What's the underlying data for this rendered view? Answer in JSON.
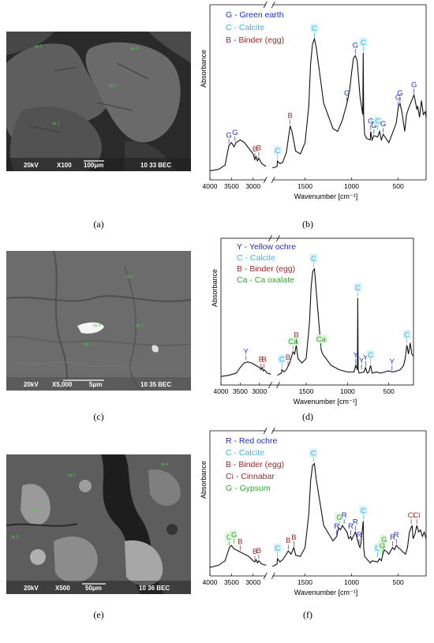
{
  "figure": {
    "panels": [
      {
        "caption": "(a)",
        "sem": {
          "kv": "20kV",
          "mag": "X100",
          "scale": "100μm",
          "info": "10 33 BEC",
          "spots": [
            "sp 2",
            "sp 4",
            "sp 2",
            "sp 1"
          ]
        }
      },
      {
        "caption": "(b)"
      },
      {
        "caption": "(c)",
        "sem": {
          "kv": "20kV",
          "mag": "X5,000",
          "scale": "5μm",
          "info": "10 35 BEC",
          "spots": [
            "sp 1",
            "sp 2",
            "sp 3",
            "sp 4"
          ]
        }
      },
      {
        "caption": "(d)"
      },
      {
        "caption": "(e)",
        "sem": {
          "kv": "20kV",
          "mag": "X500",
          "scale": "50μm",
          "info": "10 36 BEC",
          "spots": [
            "sp 2",
            "sp 4",
            "sp 1",
            "sp 3"
          ]
        }
      },
      {
        "caption": "(f)"
      }
    ]
  },
  "chart_data": [
    {
      "type": "line",
      "panel": "(b)",
      "xlabel": "Wavenumber [cm⁻¹]",
      "ylabel": "Absorbance",
      "x_reversed": true,
      "x_break": [
        2700,
        1850
      ],
      "xticks": [
        4000,
        3500,
        3000,
        1500,
        1000,
        500
      ],
      "grid": false,
      "legend_position": "top-left",
      "legend": [
        {
          "code": "G",
          "label": "Green earth",
          "color": "#1f2fbf"
        },
        {
          "code": "C",
          "label": "Calcite",
          "color": "#35b7e6"
        },
        {
          "code": "B",
          "label": "Binder (egg)",
          "color": "#9a2b2b"
        }
      ],
      "series": [
        {
          "x": [
            4000,
            3800,
            3650,
            3560,
            3500,
            3440,
            3400,
            3300,
            3200,
            3100,
            3000,
            2960,
            2930,
            2900,
            2870,
            2800,
            2700,
            1850,
            1800,
            1795,
            1770,
            1740,
            1700,
            1660,
            1640,
            1600,
            1550,
            1500,
            1460,
            1440,
            1420,
            1400,
            1380,
            1300,
            1200,
            1150,
            1100,
            1050,
            1020,
            1000,
            980,
            960,
            940,
            910,
            880,
            875,
            870,
            860,
            840,
            800,
            795,
            780,
            760,
            720,
            700,
            680,
            660,
            600,
            520,
            500,
            480,
            460,
            430,
            410,
            380,
            330,
            300,
            290,
            270,
            250,
            230,
            210,
            200
          ],
          "y": [
            0.02,
            0.03,
            0.06,
            0.2,
            0.22,
            0.19,
            0.22,
            0.24,
            0.22,
            0.18,
            0.14,
            0.1,
            0.12,
            0.09,
            0.11,
            0.07,
            0.05,
            0.04,
            0.05,
            0.09,
            0.07,
            0.08,
            0.15,
            0.34,
            0.3,
            0.16,
            0.14,
            0.22,
            0.48,
            0.78,
            0.92,
            0.96,
            0.9,
            0.5,
            0.32,
            0.3,
            0.38,
            0.5,
            0.6,
            0.72,
            0.82,
            0.84,
            0.8,
            0.55,
            0.42,
            0.86,
            0.4,
            0.28,
            0.25,
            0.24,
            0.3,
            0.24,
            0.27,
            0.26,
            0.3,
            0.24,
            0.28,
            0.22,
            0.36,
            0.47,
            0.5,
            0.44,
            0.3,
            0.42,
            0.48,
            0.56,
            0.46,
            0.48,
            0.4,
            0.52,
            0.42,
            0.44,
            0.4
          ]
        }
      ],
      "annotations": [
        {
          "text": "G",
          "x": 3560,
          "y": 0.2,
          "code": "G"
        },
        {
          "text": "G",
          "x": 3420,
          "y": 0.22,
          "code": "G"
        },
        {
          "text": "B",
          "x": 2960,
          "y": 0.1,
          "code": "B"
        },
        {
          "text": "B",
          "x": 2870,
          "y": 0.11,
          "code": "B"
        },
        {
          "text": "C",
          "x": 1795,
          "y": 0.09,
          "code": "C"
        },
        {
          "text": "B",
          "x": 1660,
          "y": 0.34,
          "code": "B"
        },
        {
          "text": "C",
          "x": 1400,
          "y": 0.96,
          "code": "C"
        },
        {
          "text": "G",
          "x": 1050,
          "y": 0.5,
          "code": "G"
        },
        {
          "text": "G",
          "x": 960,
          "y": 0.84,
          "code": "G"
        },
        {
          "text": "C",
          "x": 875,
          "y": 0.86,
          "code": "C"
        },
        {
          "text": "G",
          "x": 795,
          "y": 0.3,
          "code": "G"
        },
        {
          "text": "G",
          "x": 760,
          "y": 0.27,
          "code": "G"
        },
        {
          "text": "C",
          "x": 720,
          "y": 0.3,
          "code": "C"
        },
        {
          "text": "G",
          "x": 660,
          "y": 0.28,
          "code": "G"
        },
        {
          "text": "G",
          "x": 500,
          "y": 0.47,
          "code": "G"
        },
        {
          "text": "G",
          "x": 480,
          "y": 0.5,
          "code": "G"
        },
        {
          "text": "G",
          "x": 330,
          "y": 0.56,
          "code": "G"
        }
      ]
    },
    {
      "type": "line",
      "panel": "(d)",
      "xlabel": "Wavenumber [cm⁻¹]",
      "ylabel": "Absorbance",
      "x_reversed": true,
      "x_break": [
        2700,
        1850
      ],
      "xticks": [
        4000,
        3500,
        3000,
        2500,
        2000,
        1500,
        1000,
        500
      ],
      "grid": false,
      "legend_position": "top-left",
      "legend": [
        {
          "code": "Y",
          "label": "Yellow ochre",
          "color": "#1f2fbf"
        },
        {
          "code": "C",
          "label": "Calcite",
          "color": "#35b7e6"
        },
        {
          "code": "B",
          "label": "Binder (egg)",
          "color": "#9a2b2b"
        },
        {
          "code": "Ca",
          "label": "Ca oxalate",
          "color": "#2ea82e"
        }
      ],
      "series": [
        {
          "x": [
            4000,
            3800,
            3600,
            3500,
            3400,
            3300,
            3200,
            3100,
            3000,
            2960,
            2930,
            2900,
            2870,
            2800,
            2700,
            1850,
            1800,
            1795,
            1770,
            1740,
            1700,
            1660,
            1640,
            1620,
            1600,
            1550,
            1500,
            1460,
            1440,
            1420,
            1400,
            1380,
            1320,
            1300,
            1200,
            1100,
            1000,
            920,
            900,
            880,
            875,
            870,
            860,
            800,
            780,
            760,
            740,
            720,
            700,
            650,
            600,
            550,
            500,
            450,
            400,
            360,
            340,
            320,
            300,
            280,
            260,
            240,
            220,
            200
          ],
          "y": [
            0.02,
            0.03,
            0.05,
            0.1,
            0.14,
            0.15,
            0.14,
            0.12,
            0.1,
            0.08,
            0.1,
            0.07,
            0.08,
            0.05,
            0.04,
            0.03,
            0.05,
            0.08,
            0.06,
            0.08,
            0.14,
            0.24,
            0.22,
            0.3,
            0.18,
            0.14,
            0.18,
            0.5,
            0.82,
            0.96,
            0.98,
            0.8,
            0.26,
            0.22,
            0.12,
            0.08,
            0.06,
            0.06,
            0.12,
            0.08,
            0.72,
            0.08,
            0.05,
            0.06,
            0.1,
            0.05,
            0.06,
            0.12,
            0.05,
            0.06,
            0.05,
            0.06,
            0.07,
            0.06,
            0.07,
            0.08,
            0.1,
            0.12,
            0.18,
            0.3,
            0.22,
            0.32,
            0.22,
            0.2
          ]
        }
      ],
      "annotations": [
        {
          "text": "Y",
          "x": 3350,
          "y": 0.15,
          "code": "Y"
        },
        {
          "text": "B",
          "x": 2960,
          "y": 0.08,
          "code": "B"
        },
        {
          "text": "B",
          "x": 2880,
          "y": 0.08,
          "code": "B"
        },
        {
          "text": "C",
          "x": 1795,
          "y": 0.08,
          "code": "C"
        },
        {
          "text": "B",
          "x": 1720,
          "y": 0.1,
          "code": "B"
        },
        {
          "text": "Ca",
          "x": 1660,
          "y": 0.24,
          "code": "Ca"
        },
        {
          "text": "B",
          "x": 1620,
          "y": 0.3,
          "code": "B"
        },
        {
          "text": "C",
          "x": 1410,
          "y": 0.98,
          "code": "C"
        },
        {
          "text": "Ca",
          "x": 1320,
          "y": 0.26,
          "code": "Ca"
        },
        {
          "text": "Y",
          "x": 900,
          "y": 0.12,
          "code": "Y"
        },
        {
          "text": "C",
          "x": 875,
          "y": 0.72,
          "code": "C"
        },
        {
          "text": "Y",
          "x": 830,
          "y": 0.07,
          "code": "Y"
        },
        {
          "text": "Y",
          "x": 780,
          "y": 0.1,
          "code": "Y"
        },
        {
          "text": "C",
          "x": 720,
          "y": 0.12,
          "code": "C"
        },
        {
          "text": "Y",
          "x": 460,
          "y": 0.06,
          "code": "Y"
        },
        {
          "text": "C",
          "x": 280,
          "y": 0.3,
          "code": "C"
        }
      ]
    },
    {
      "type": "line",
      "panel": "(f)",
      "xlabel": "Wavenumber [cm⁻¹]",
      "ylabel": "Absorbance",
      "x_reversed": true,
      "x_break": [
        2700,
        1850
      ],
      "xticks": [
        4000,
        3500,
        3000,
        1500,
        1000,
        500
      ],
      "grid": false,
      "legend_position": "top-left",
      "legend": [
        {
          "code": "R",
          "label": "Red ochre",
          "color": "#1f2fbf"
        },
        {
          "code": "C",
          "label": "Calcite",
          "color": "#35b7e6"
        },
        {
          "code": "B",
          "label": "Binder (egg)",
          "color": "#9a2b2b"
        },
        {
          "code": "Ci",
          "label": "Cinnabar",
          "color": "#9a2b2b"
        },
        {
          "code": "G",
          "label": "Gypsum",
          "color": "#2ea82e"
        }
      ],
      "series": [
        {
          "x": [
            4000,
            3800,
            3650,
            3550,
            3500,
            3450,
            3400,
            3300,
            3200,
            3100,
            3000,
            2960,
            2930,
            2900,
            2870,
            2800,
            2700,
            1850,
            1800,
            1795,
            1770,
            1740,
            1700,
            1680,
            1650,
            1620,
            1600,
            1550,
            1500,
            1460,
            1440,
            1420,
            1400,
            1380,
            1300,
            1200,
            1160,
            1140,
            1120,
            1100,
            1050,
            1030,
            1010,
            1000,
            960,
            920,
            910,
            900,
            875,
            870,
            860,
            820,
            800,
            780,
            720,
            700,
            680,
            670,
            650,
            620,
            600,
            560,
            540,
            520,
            500,
            470,
            450,
            420,
            400,
            380,
            350,
            340,
            320,
            300,
            280,
            260,
            240,
            220,
            200
          ],
          "y": [
            0.02,
            0.04,
            0.08,
            0.2,
            0.22,
            0.19,
            0.18,
            0.16,
            0.14,
            0.12,
            0.08,
            0.07,
            0.09,
            0.06,
            0.08,
            0.05,
            0.04,
            0.03,
            0.05,
            0.1,
            0.07,
            0.09,
            0.14,
            0.17,
            0.14,
            0.2,
            0.13,
            0.12,
            0.2,
            0.5,
            0.8,
            0.94,
            0.96,
            0.82,
            0.4,
            0.26,
            0.3,
            0.38,
            0.36,
            0.4,
            0.34,
            0.28,
            0.3,
            0.27,
            0.34,
            0.22,
            0.2,
            0.24,
            0.44,
            0.2,
            0.12,
            0.08,
            0.06,
            0.08,
            0.07,
            0.1,
            0.08,
            0.12,
            0.18,
            0.16,
            0.14,
            0.2,
            0.18,
            0.22,
            0.2,
            0.18,
            0.16,
            0.14,
            0.2,
            0.34,
            0.4,
            0.28,
            0.32,
            0.4,
            0.34,
            0.36,
            0.3,
            0.34,
            0.28
          ]
        }
      ],
      "annotations": [
        {
          "text": "G",
          "x": 3550,
          "y": 0.2,
          "code": "G"
        },
        {
          "text": "G",
          "x": 3440,
          "y": 0.22,
          "code": "G"
        },
        {
          "text": "B",
          "x": 3300,
          "y": 0.16,
          "code": "B"
        },
        {
          "text": "B",
          "x": 2960,
          "y": 0.07,
          "code": "B"
        },
        {
          "text": "B",
          "x": 2870,
          "y": 0.08,
          "code": "B"
        },
        {
          "text": "C",
          "x": 1795,
          "y": 0.1,
          "code": "C"
        },
        {
          "text": "B",
          "x": 1680,
          "y": 0.17,
          "code": "B"
        },
        {
          "text": "B",
          "x": 1620,
          "y": 0.2,
          "code": "B"
        },
        {
          "text": "C",
          "x": 1410,
          "y": 0.96,
          "code": "C"
        },
        {
          "text": "R",
          "x": 1160,
          "y": 0.3,
          "code": "R"
        },
        {
          "text": "G",
          "x": 1130,
          "y": 0.38,
          "code": "G"
        },
        {
          "text": "R",
          "x": 1080,
          "y": 0.4,
          "code": "R"
        },
        {
          "text": "R",
          "x": 1010,
          "y": 0.3,
          "code": "R"
        },
        {
          "text": "R",
          "x": 960,
          "y": 0.34,
          "code": "R"
        },
        {
          "text": "R",
          "x": 920,
          "y": 0.22,
          "code": "R"
        },
        {
          "text": "C",
          "x": 875,
          "y": 0.44,
          "code": "C"
        },
        {
          "text": "C",
          "x": 720,
          "y": 0.1,
          "code": "C"
        },
        {
          "text": "G",
          "x": 670,
          "y": 0.12,
          "code": "G"
        },
        {
          "text": "G",
          "x": 650,
          "y": 0.18,
          "code": "G"
        },
        {
          "text": "R",
          "x": 560,
          "y": 0.2,
          "code": "R"
        },
        {
          "text": "R",
          "x": 520,
          "y": 0.22,
          "code": "R"
        },
        {
          "text": "Ci",
          "x": 360,
          "y": 0.4,
          "code": "Ci"
        },
        {
          "text": "Ci",
          "x": 300,
          "y": 0.4,
          "code": "Ci"
        }
      ]
    }
  ]
}
